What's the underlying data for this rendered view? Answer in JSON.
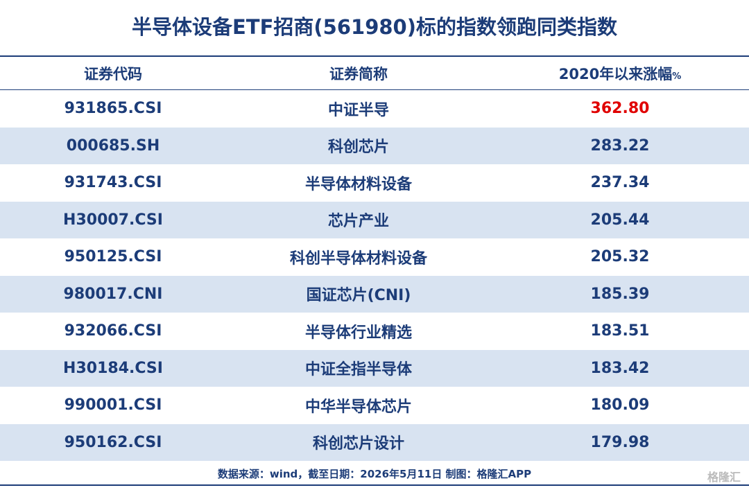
{
  "header": {
    "title": "半导体设备ETF招商(561980)标的指数领跑同类指数"
  },
  "table": {
    "columns": [
      "证券代码",
      "证券简称",
      "2020年以来涨幅"
    ],
    "unit": "%",
    "rows": [
      [
        "931865.CSI",
        "中证半导",
        "362.80"
      ],
      [
        "000685.SH",
        "科创芯片",
        "283.22"
      ],
      [
        "931743.CSI",
        "半导体材料设备",
        "237.34"
      ],
      [
        "H30007.CSI",
        "芯片产业",
        "205.44"
      ],
      [
        "950125.CSI",
        "科创半导体材料设备",
        "205.32"
      ],
      [
        "980017.CNI",
        "国证芯片(CNI)",
        "185.39"
      ],
      [
        "932066.CSI",
        "半导体行业精选",
        "183.51"
      ],
      [
        "H30184.CSI",
        "中证全指半导体",
        "183.42"
      ],
      [
        "990001.CSI",
        "中华半导体芯片",
        "180.09"
      ],
      [
        "950162.CSI",
        "科创芯片设计",
        "179.98"
      ]
    ]
  },
  "footer": {
    "source": "数据来源：wind，截至日期：2026年5月11日 制图：格隆汇APP",
    "watermark": "格隆汇"
  }
}
